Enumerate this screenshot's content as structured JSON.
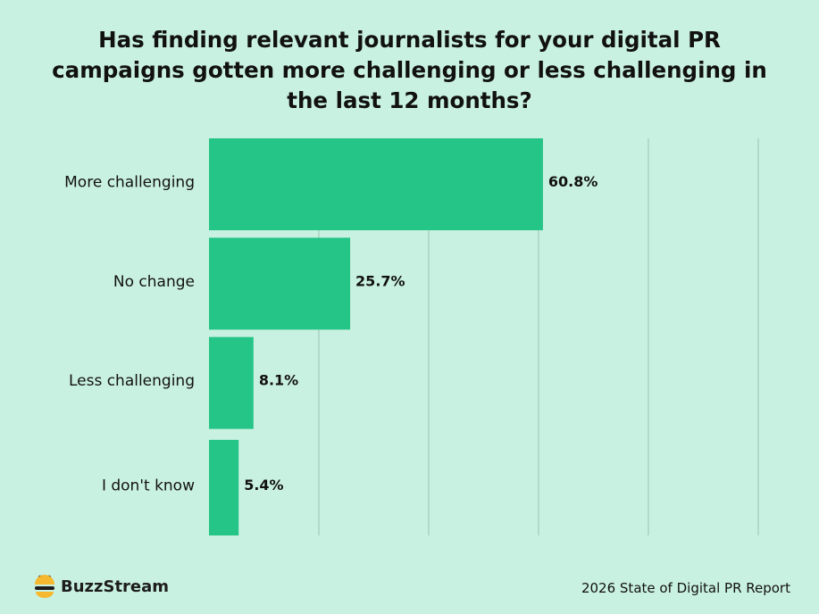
{
  "chart_data": {
    "type": "bar",
    "orientation": "horizontal",
    "title": "Has finding relevant journalists for your digital PR campaigns gotten more challenging or less challenging in the last 12 months?",
    "categories": [
      "More challenging",
      "No change",
      "Less challenging",
      "I don't know"
    ],
    "values": [
      60.8,
      25.7,
      8.1,
      5.4
    ],
    "value_labels": [
      "60.8%",
      "25.7%",
      "8.1%",
      "5.4%"
    ],
    "xlim": [
      0,
      100
    ],
    "grid": true,
    "bar_color": "#25c487",
    "grid_color": "#9bc2b0"
  },
  "footer": {
    "brand": "BuzzStream",
    "report": "2026 State of Digital PR Report"
  },
  "colors": {
    "background": "#c9f1e1",
    "logo_yellow": "#f5b82e",
    "logo_dark": "#1c1c1c"
  }
}
